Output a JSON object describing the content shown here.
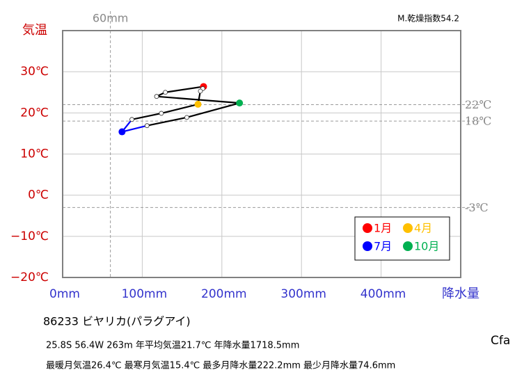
{
  "chart_data": {
    "type": "line",
    "corner_note": "M.乾燥指数54.2",
    "y_title": "気温",
    "x_title": "降水量",
    "x": [
      177,
      176,
      173,
      170,
      124,
      87,
      74.6,
      106,
      156,
      222.2,
      118,
      129
    ],
    "values": [
      26.4,
      25.9,
      25.3,
      22.1,
      19.9,
      18.4,
      15.4,
      16.9,
      18.9,
      22.4,
      24.0,
      25.0
    ],
    "point_colors": [
      "#ff0000",
      "#ffffff",
      "#ffffff",
      "#ffc000",
      "#ffffff",
      "#ffffff",
      "#0000ff",
      "#ffffff",
      "#ffffff",
      "#00b050",
      "#ffffff",
      "#ffffff"
    ],
    "segment_colors": [
      "#000000",
      "#000000",
      "#000000",
      "#000000",
      "#000000",
      "#0000ff",
      "#0000ff",
      "#000000",
      "#000000",
      "#000000",
      "#000000",
      "#000000"
    ],
    "xlim": [
      0,
      500
    ],
    "ylim": [
      -20,
      40
    ],
    "xticks": [
      {
        "value": 0,
        "label": "0mm"
      },
      {
        "value": 100,
        "label": "100mm"
      },
      {
        "value": 200,
        "label": "200mm"
      },
      {
        "value": 300,
        "label": "300mm"
      },
      {
        "value": 400,
        "label": "400mm"
      }
    ],
    "yticks": [
      {
        "value": -20,
        "label": "−20℃"
      },
      {
        "value": -10,
        "label": "−10℃"
      },
      {
        "value": 0,
        "label": "0℃"
      },
      {
        "value": 10,
        "label": "10℃"
      },
      {
        "value": 20,
        "label": "20℃"
      },
      {
        "value": 30,
        "label": "30℃"
      }
    ],
    "hlines": [
      {
        "value": 22,
        "label": "22℃"
      },
      {
        "value": 18,
        "label": "18℃"
      },
      {
        "value": -3,
        "label": "-3℃"
      }
    ],
    "vlines": [
      {
        "value": 60,
        "label": "60mm"
      }
    ],
    "grid": true,
    "legend": [
      {
        "name": "1月",
        "color": "#ff0000"
      },
      {
        "name": "4月",
        "color": "#ffc000"
      },
      {
        "name": "7月",
        "color": "#0000ff"
      },
      {
        "name": "10月",
        "color": "#00b050"
      }
    ],
    "station": "86233  ビヤリカ(パラグアイ)",
    "info1": "25.8S  56.4W 263m  年平均気温21.7℃ 年降水量1718.5mm",
    "info2": "最暖月気温26.4℃ 最寒月気温15.4℃ 最多月降水量222.2mm 最少月降水量74.6mm",
    "climate": "Cfa"
  }
}
